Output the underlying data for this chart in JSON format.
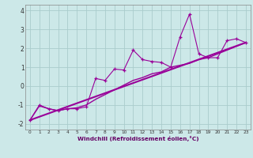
{
  "xlabel": "Windchill (Refroidissement éolien,°C)",
  "bg_color": "#cce8e8",
  "grid_color": "#aacccc",
  "line_color": "#990099",
  "xlim": [
    -0.5,
    23.5
  ],
  "ylim": [
    -2.3,
    4.3
  ],
  "yticks": [
    -2,
    -1,
    0,
    1,
    2,
    3,
    4
  ],
  "xticks": [
    0,
    1,
    2,
    3,
    4,
    5,
    6,
    7,
    8,
    9,
    10,
    11,
    12,
    13,
    14,
    15,
    16,
    17,
    18,
    19,
    20,
    21,
    22,
    23
  ],
  "series1_x": [
    0,
    1,
    2,
    3,
    4,
    5,
    6,
    7,
    8,
    9,
    10,
    11,
    12,
    13,
    14,
    15,
    16,
    17,
    18,
    19,
    20,
    21,
    22,
    23
  ],
  "series1_y": [
    -1.8,
    -1.0,
    -1.2,
    -1.3,
    -1.2,
    -1.2,
    -1.1,
    0.4,
    0.3,
    0.9,
    0.85,
    1.9,
    1.4,
    1.3,
    1.25,
    1.0,
    2.6,
    3.8,
    1.7,
    1.5,
    1.5,
    2.4,
    2.5,
    2.3
  ],
  "series2_x": [
    0,
    1,
    2,
    3,
    4,
    5,
    6,
    7,
    8,
    9,
    10,
    11,
    12,
    13,
    14,
    15,
    16,
    17,
    18,
    19,
    20,
    21,
    22,
    23
  ],
  "series2_y": [
    -1.8,
    -1.05,
    -1.2,
    -1.3,
    -1.2,
    -1.15,
    -1.0,
    -0.7,
    -0.45,
    -0.2,
    0.05,
    0.3,
    0.45,
    0.65,
    0.75,
    1.0,
    1.1,
    1.2,
    1.4,
    1.5,
    1.7,
    1.9,
    2.1,
    2.3
  ],
  "series3_x": [
    0,
    23
  ],
  "series3_y": [
    -1.8,
    2.3
  ]
}
